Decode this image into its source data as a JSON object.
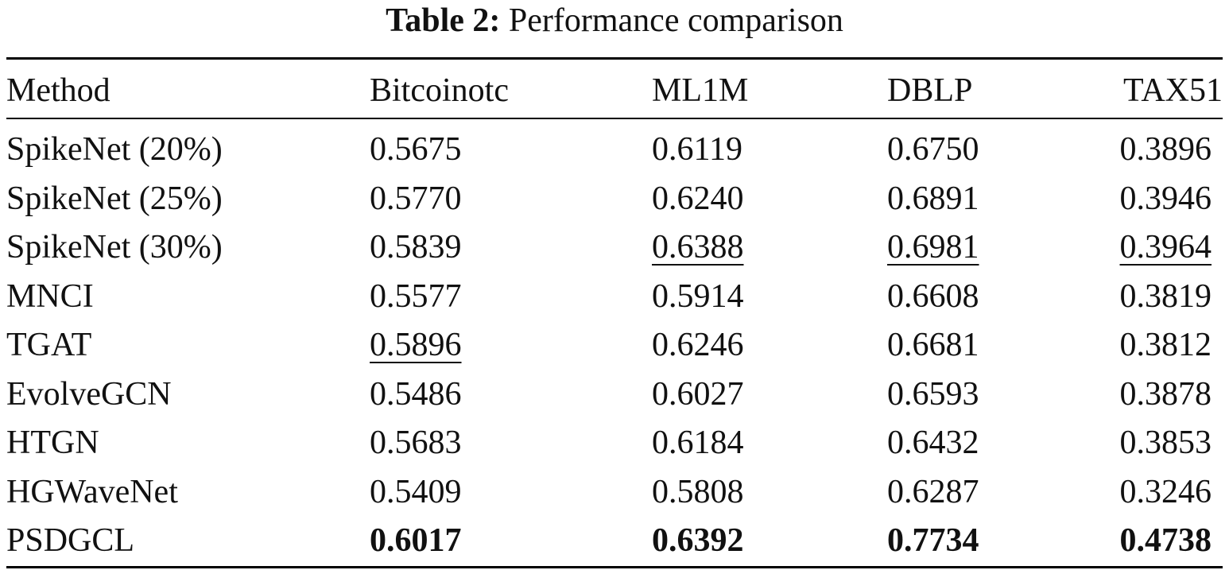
{
  "caption": {
    "label": "Table 2:",
    "text": "Performance comparison"
  },
  "table": {
    "headers": [
      "Method",
      "Bitcoinotc",
      "ML1M",
      "DBLP",
      "TAX51"
    ],
    "rows": [
      {
        "method": "SpikeNet (20%)",
        "values": [
          "0.5675",
          "0.6119",
          "0.6750",
          "0.3896"
        ],
        "underline": [
          false,
          false,
          false,
          false
        ],
        "bold": [
          false,
          false,
          false,
          false
        ]
      },
      {
        "method": "SpikeNet (25%)",
        "values": [
          "0.5770",
          "0.6240",
          "0.6891",
          "0.3946"
        ],
        "underline": [
          false,
          false,
          false,
          false
        ],
        "bold": [
          false,
          false,
          false,
          false
        ]
      },
      {
        "method": "SpikeNet (30%)",
        "values": [
          "0.5839",
          "0.6388",
          "0.6981",
          "0.3964"
        ],
        "underline": [
          false,
          true,
          true,
          true
        ],
        "bold": [
          false,
          false,
          false,
          false
        ]
      },
      {
        "method": "MNCI",
        "values": [
          "0.5577",
          "0.5914",
          "0.6608",
          "0.3819"
        ],
        "underline": [
          false,
          false,
          false,
          false
        ],
        "bold": [
          false,
          false,
          false,
          false
        ]
      },
      {
        "method": "TGAT",
        "values": [
          "0.5896",
          "0.6246",
          "0.6681",
          "0.3812"
        ],
        "underline": [
          true,
          false,
          false,
          false
        ],
        "bold": [
          false,
          false,
          false,
          false
        ]
      },
      {
        "method": "EvolveGCN",
        "values": [
          "0.5486",
          "0.6027",
          "0.6593",
          "0.3878"
        ],
        "underline": [
          false,
          false,
          false,
          false
        ],
        "bold": [
          false,
          false,
          false,
          false
        ]
      },
      {
        "method": "HTGN",
        "values": [
          "0.5683",
          "0.6184",
          "0.6432",
          "0.3853"
        ],
        "underline": [
          false,
          false,
          false,
          false
        ],
        "bold": [
          false,
          false,
          false,
          false
        ]
      },
      {
        "method": "HGWaveNet",
        "values": [
          "0.5409",
          "0.5808",
          "0.6287",
          "0.3246"
        ],
        "underline": [
          false,
          false,
          false,
          false
        ],
        "bold": [
          false,
          false,
          false,
          false
        ]
      },
      {
        "method": "PSDGCL",
        "values": [
          "0.6017",
          "0.6392",
          "0.7734",
          "0.4738"
        ],
        "underline": [
          false,
          false,
          false,
          false
        ],
        "bold": [
          true,
          true,
          true,
          true
        ]
      }
    ]
  }
}
